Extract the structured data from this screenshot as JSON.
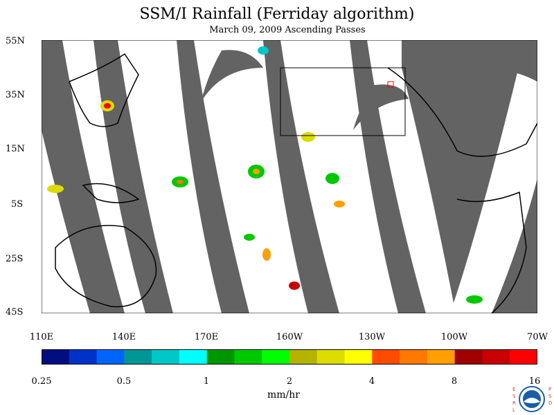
{
  "title": "SSM/I Rainfall (Ferriday algorithm)",
  "subtitle": "March 09, 2009  Ascending Passes",
  "lat_labels": [
    "55N",
    "35N",
    "15N",
    "5S",
    "25S",
    "45S"
  ],
  "lon_labels": [
    "110E",
    "140E",
    "170E",
    "160W",
    "130W",
    "100W",
    "70W"
  ],
  "colorbar": {
    "tick_labels": [
      "0.25",
      "0.5",
      "1",
      "2",
      "4",
      "8",
      "16"
    ],
    "units": "mm/hr",
    "colors": [
      "#000e80",
      "#0032c8",
      "#0064ff",
      "#009696",
      "#00c8c8",
      "#00ffff",
      "#009600",
      "#00c800",
      "#00ff00",
      "#b4b400",
      "#dcdc00",
      "#ffff00",
      "#ff4b00",
      "#ff7800",
      "#ffa000",
      "#a00000",
      "#c80000",
      "#ff0000"
    ]
  },
  "map": {
    "extent": {
      "lon_min": 110,
      "lon_max": 290,
      "lat_min": -45,
      "lat_max": 55
    },
    "swath_gap_color": "#636363",
    "box_color": "#000000"
  },
  "logo": {
    "left_text": "ESRL",
    "right_text": "PSD",
    "name": "noaa-logo"
  }
}
